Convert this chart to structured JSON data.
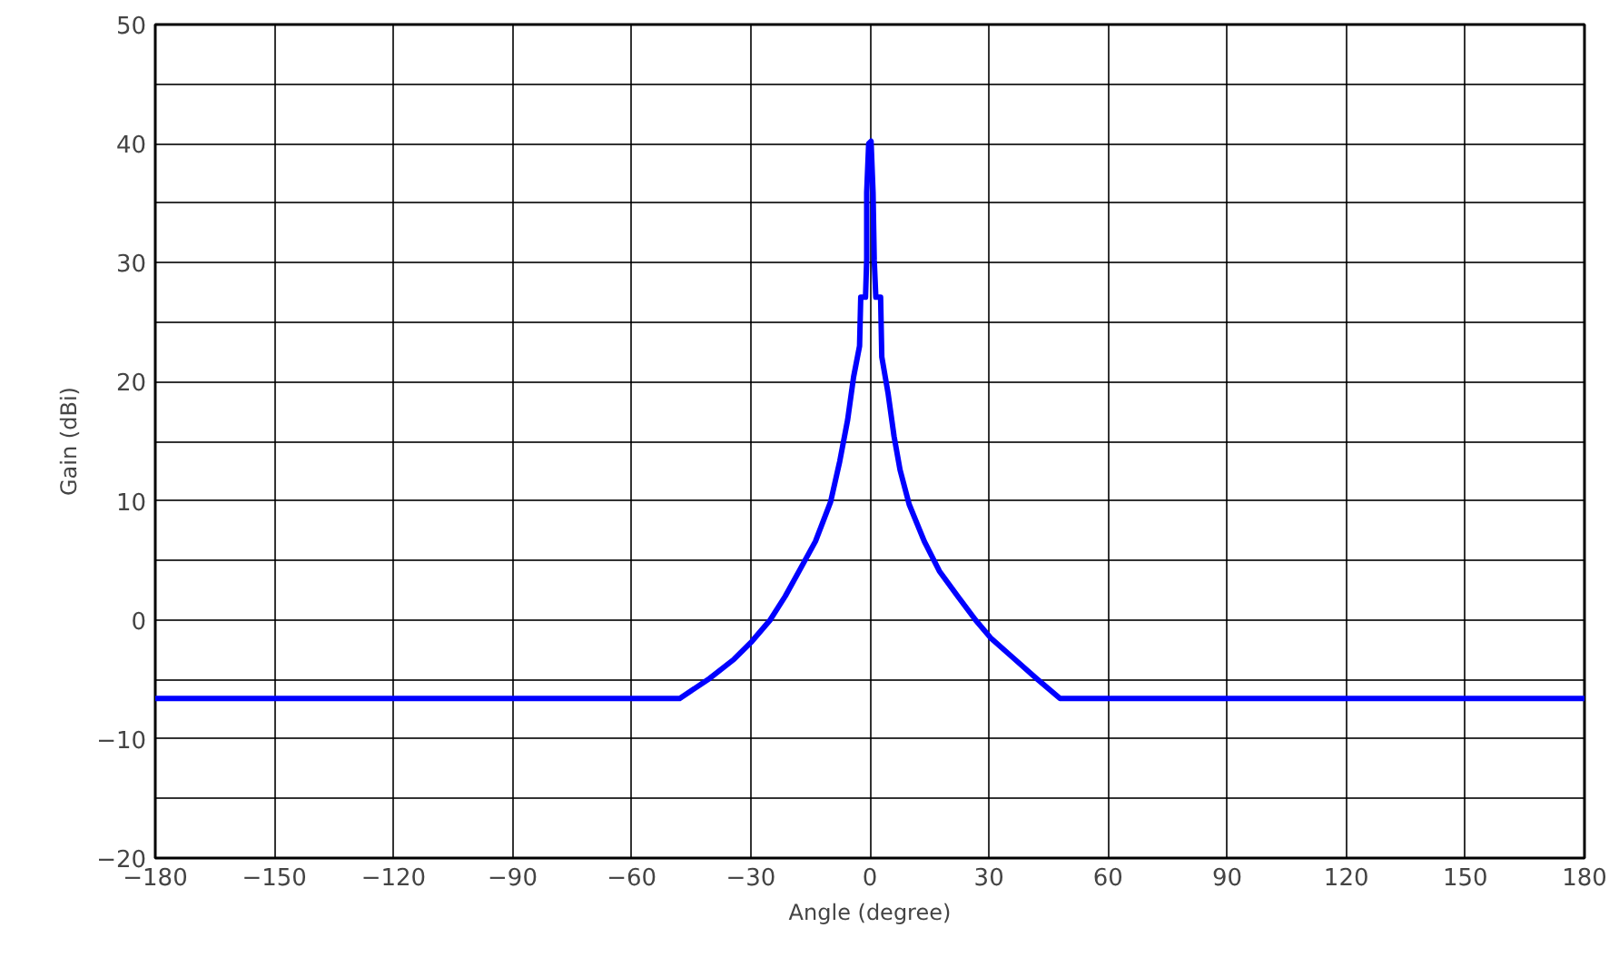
{
  "chart_data": {
    "type": "line",
    "xlabel": "Angle (degree)",
    "ylabel": "Gain (dBi)",
    "x": [
      -180,
      -47.9,
      -40.3,
      -34.2,
      -29.7,
      -25.1,
      -21.3,
      -17.5,
      -13.7,
      -9.9,
      -7.6,
      -5.6,
      -4.1,
      -2.6,
      -2.3,
      -1.1,
      -0.8,
      -0.8,
      -0.3,
      0.3,
      0.8,
      1.1,
      1.5,
      2.7,
      3.0,
      4.6,
      6.1,
      7.6,
      9.9,
      13.7,
      17.5,
      22.1,
      26.6,
      30.4,
      35.8,
      41.9,
      47.9,
      180
    ],
    "series": [
      {
        "color": "#0000ff",
        "values": [
          -6.6,
          -6.6,
          -4.9,
          -3.3,
          -1.8,
          0,
          2.0,
          4.3,
          6.6,
          9.9,
          13.3,
          16.8,
          20.4,
          23.0,
          27.1,
          27.1,
          30.3,
          35.9,
          40.0,
          40.2,
          35.9,
          30.2,
          27.1,
          27.1,
          22.1,
          19.0,
          15.4,
          12.6,
          9.7,
          6.6,
          4.1,
          2.0,
          0,
          -1.5,
          -3.1,
          -4.9,
          -6.6,
          -6.6
        ]
      }
    ],
    "xlim": [
      -180,
      180
    ],
    "xticks": [
      {
        "value": -180,
        "label": "−180"
      },
      {
        "value": -150,
        "label": "−150"
      },
      {
        "value": -120,
        "label": "−120"
      },
      {
        "value": -90,
        "label": "−90"
      },
      {
        "value": -60,
        "label": "−60"
      },
      {
        "value": -30,
        "label": "−30"
      },
      0,
      30,
      60,
      90,
      120,
      150,
      180
    ],
    "ylim": [
      -20,
      50
    ],
    "yticks": [
      {
        "value": -20,
        "label": "−20"
      },
      {
        "value": -15,
        "label": null
      },
      {
        "value": -10,
        "label": "−10"
      },
      {
        "value": -5,
        "label": null
      },
      0,
      {
        "value": 5,
        "label": null
      },
      10,
      {
        "value": 15,
        "label": null
      },
      20,
      {
        "value": 25,
        "label": null
      },
      30,
      {
        "value": 35,
        "label": null
      },
      40,
      {
        "value": 45,
        "label": null
      },
      50
    ],
    "grid": true,
    "marker": "none",
    "line_style": "solid"
  }
}
